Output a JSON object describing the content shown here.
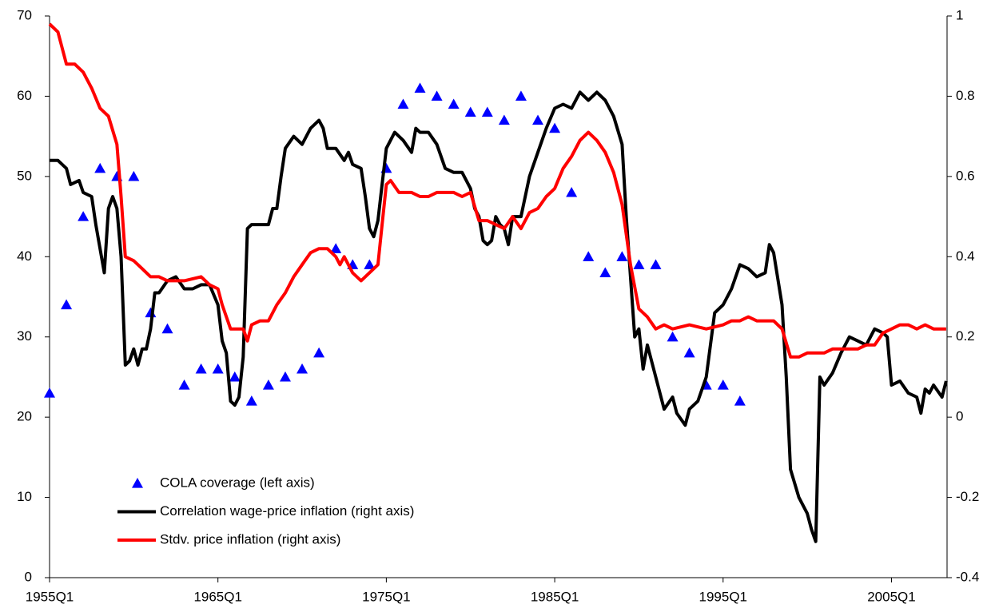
{
  "chart_data": {
    "type": "line",
    "xlim": [
      1955,
      2008.3
    ],
    "xticks": [
      {
        "value": 1955,
        "label": "1955Q1"
      },
      {
        "value": 1965,
        "label": "1965Q1"
      },
      {
        "value": 1975,
        "label": "1975Q1"
      },
      {
        "value": 1985,
        "label": "1985Q1"
      },
      {
        "value": 1995,
        "label": "1995Q1"
      },
      {
        "value": 2005,
        "label": "2005Q1"
      }
    ],
    "ylim": [
      0,
      70
    ],
    "yticks": [
      0,
      10,
      20,
      30,
      40,
      50,
      60,
      70
    ],
    "y2lim": [
      -0.4,
      1
    ],
    "y2ticks": [
      -0.4,
      -0.2,
      0,
      0.2,
      0.4,
      0.6,
      0.8,
      1
    ],
    "legend": "lower left",
    "series": [
      {
        "name": "COLA coverage (left axis)",
        "type": "scatter",
        "marker": "triangle",
        "color": "#0000ff",
        "axis": "y",
        "x": [
          1955,
          1956,
          1957,
          1958,
          1959,
          1960,
          1961,
          1962,
          1963,
          1964,
          1965,
          1966,
          1967,
          1968,
          1969,
          1970,
          1971,
          1972,
          1973,
          1974,
          1975,
          1976,
          1977,
          1978,
          1979,
          1980,
          1981,
          1982,
          1983,
          1984,
          1985,
          1986,
          1987,
          1988,
          1989,
          1990,
          1991,
          1992,
          1993,
          1994,
          1995,
          1996
        ],
        "values": [
          23,
          34,
          45,
          51,
          50,
          50,
          33,
          31,
          24,
          26,
          26,
          25,
          22,
          24,
          25,
          26,
          28,
          41,
          39,
          39,
          51,
          59,
          61,
          60,
          59,
          58,
          58,
          57,
          60,
          57,
          56,
          48,
          40,
          38,
          40,
          39,
          39,
          30,
          28,
          24,
          24,
          22
        ]
      },
      {
        "name": "Correlation wage-price inflation (right axis)",
        "type": "line",
        "color": "#000000",
        "axis": "y2",
        "x": [
          1955,
          1955.5,
          1956,
          1956.25,
          1956.75,
          1957,
          1957.5,
          1957.75,
          1958.25,
          1958.5,
          1958.75,
          1959,
          1959.25,
          1959.5,
          1959.75,
          1960,
          1960.25,
          1960.5,
          1960.75,
          1961,
          1961.25,
          1961.5,
          1962,
          1962.5,
          1963,
          1963.5,
          1964,
          1964.5,
          1965,
          1965.25,
          1965.5,
          1965.75,
          1966,
          1966.25,
          1966.5,
          1966.75,
          1967,
          1967.5,
          1968,
          1968.25,
          1968.5,
          1968.75,
          1969,
          1969.5,
          1970,
          1970.5,
          1971,
          1971.25,
          1971.5,
          1972,
          1972.5,
          1972.75,
          1973,
          1973.5,
          1973.75,
          1974,
          1974.25,
          1974.5,
          1974.75,
          1975,
          1975.5,
          1976,
          1976.5,
          1976.75,
          1977,
          1977.5,
          1978,
          1978.5,
          1979,
          1979.5,
          1980,
          1980.25,
          1980.5,
          1980.75,
          1981,
          1981.25,
          1981.5,
          1981.75,
          1982,
          1982.25,
          1982.5,
          1983,
          1983.5,
          1984,
          1984.5,
          1985,
          1985.5,
          1986,
          1986.5,
          1987,
          1987.5,
          1988,
          1988.5,
          1989,
          1989.25,
          1989.5,
          1989.75,
          1990,
          1990.25,
          1990.5,
          1991,
          1991.5,
          1992,
          1992.25,
          1992.75,
          1993,
          1993.5,
          1994,
          1994.5,
          1995,
          1995.5,
          1996,
          1996.5,
          1997,
          1997.5,
          1997.75,
          1998,
          1998.5,
          1998.75,
          1999,
          1999.5,
          2000,
          2000.25,
          2000.5,
          2000.75,
          2001,
          2001.5,
          2002,
          2002.5,
          2003,
          2003.5,
          2004,
          2004.5,
          2004.75,
          2005,
          2005.5,
          2006,
          2006.5,
          2006.75,
          2007,
          2007.25,
          2007.5,
          2008,
          2008.25
        ],
        "values": [
          0.64,
          0.64,
          0.62,
          0.58,
          0.59,
          0.56,
          0.55,
          0.48,
          0.36,
          0.52,
          0.55,
          0.52,
          0.4,
          0.13,
          0.14,
          0.17,
          0.13,
          0.17,
          0.17,
          0.22,
          0.31,
          0.31,
          0.34,
          0.35,
          0.32,
          0.32,
          0.33,
          0.33,
          0.28,
          0.19,
          0.16,
          0.04,
          0.03,
          0.05,
          0.15,
          0.47,
          0.48,
          0.48,
          0.48,
          0.52,
          0.52,
          0.6,
          0.67,
          0.7,
          0.68,
          0.72,
          0.74,
          0.72,
          0.67,
          0.67,
          0.64,
          0.66,
          0.63,
          0.62,
          0.55,
          0.47,
          0.45,
          0.49,
          0.58,
          0.67,
          0.71,
          0.69,
          0.66,
          0.72,
          0.71,
          0.71,
          0.68,
          0.62,
          0.61,
          0.61,
          0.57,
          0.52,
          0.5,
          0.44,
          0.43,
          0.44,
          0.5,
          0.48,
          0.47,
          0.43,
          0.5,
          0.5,
          0.6,
          0.66,
          0.72,
          0.77,
          0.78,
          0.77,
          0.81,
          0.79,
          0.81,
          0.79,
          0.75,
          0.68,
          0.5,
          0.35,
          0.2,
          0.22,
          0.12,
          0.18,
          0.1,
          0.02,
          0.05,
          0.01,
          -0.02,
          0.02,
          0.04,
          0.1,
          0.26,
          0.28,
          0.32,
          0.38,
          0.37,
          0.35,
          0.36,
          0.43,
          0.41,
          0.28,
          0.1,
          -0.13,
          -0.2,
          -0.24,
          -0.28,
          -0.31,
          0.1,
          0.08,
          0.11,
          0.16,
          0.2,
          0.19,
          0.18,
          0.22,
          0.21,
          0.2,
          0.08,
          0.09,
          0.06,
          0.05,
          0.01,
          0.07,
          0.06,
          0.08,
          0.05,
          0.09
        ]
      },
      {
        "name": "Stdv. price inflation (right axis)",
        "type": "line",
        "color": "#ff0000",
        "axis": "y2",
        "x": [
          1955,
          1955.5,
          1956,
          1956.5,
          1957,
          1957.5,
          1958,
          1958.5,
          1959,
          1959.25,
          1959.5,
          1960,
          1960.5,
          1961,
          1961.5,
          1962,
          1963,
          1964,
          1964.5,
          1965,
          1965.25,
          1965.75,
          1966.5,
          1966.75,
          1967,
          1967.5,
          1968,
          1968.5,
          1969,
          1969.5,
          1970,
          1970.5,
          1971,
          1971.5,
          1972,
          1972.25,
          1972.5,
          1973,
          1973.5,
          1974,
          1974.5,
          1974.75,
          1975,
          1975.25,
          1975.75,
          1976.5,
          1977,
          1977.5,
          1978,
          1979,
          1979.5,
          1980,
          1980.5,
          1981,
          1981.5,
          1982,
          1982.5,
          1983,
          1983.5,
          1984,
          1984.5,
          1985,
          1985.5,
          1986,
          1986.5,
          1987,
          1987.5,
          1988,
          1988.5,
          1989,
          1989.5,
          1990,
          1990.5,
          1991,
          1991.5,
          1992,
          1993,
          1994,
          1995,
          1995.5,
          1996,
          1996.5,
          1997,
          1997.5,
          1998,
          1998.5,
          1999,
          1999.5,
          2000,
          2001,
          2001.5,
          2002,
          2003,
          2003.5,
          2004,
          2004.5,
          2005,
          2005.5,
          2006,
          2006.5,
          2007,
          2007.5,
          2008,
          2008.25
        ],
        "values": [
          0.98,
          0.96,
          0.88,
          0.88,
          0.86,
          0.82,
          0.77,
          0.75,
          0.68,
          0.55,
          0.4,
          0.39,
          0.37,
          0.35,
          0.35,
          0.34,
          0.34,
          0.35,
          0.33,
          0.32,
          0.28,
          0.22,
          0.22,
          0.19,
          0.23,
          0.24,
          0.24,
          0.28,
          0.31,
          0.35,
          0.38,
          0.41,
          0.42,
          0.42,
          0.4,
          0.38,
          0.4,
          0.36,
          0.34,
          0.36,
          0.38,
          0.48,
          0.58,
          0.59,
          0.56,
          0.56,
          0.55,
          0.55,
          0.56,
          0.56,
          0.55,
          0.56,
          0.49,
          0.49,
          0.48,
          0.47,
          0.5,
          0.47,
          0.51,
          0.52,
          0.55,
          0.57,
          0.62,
          0.65,
          0.69,
          0.71,
          0.69,
          0.66,
          0.61,
          0.53,
          0.38,
          0.27,
          0.25,
          0.22,
          0.23,
          0.22,
          0.23,
          0.22,
          0.23,
          0.24,
          0.24,
          0.25,
          0.24,
          0.24,
          0.24,
          0.22,
          0.15,
          0.15,
          0.16,
          0.16,
          0.17,
          0.17,
          0.17,
          0.18,
          0.18,
          0.21,
          0.22,
          0.23,
          0.23,
          0.22,
          0.23,
          0.22,
          0.22,
          0.22
        ]
      }
    ]
  }
}
